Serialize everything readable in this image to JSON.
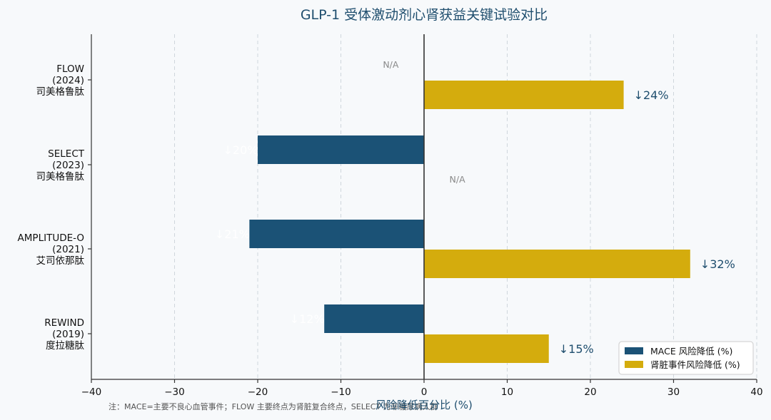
{
  "chart_data": {
    "type": "bar",
    "orientation": "horizontal",
    "title": "GLP-1 受体激动剂心肾获益关键试验对比",
    "xlabel": "风险降低百分比 (%)",
    "ylabel": "",
    "xlim": [
      -40,
      40
    ],
    "xticks": [
      -40,
      -30,
      -20,
      -10,
      0,
      10,
      20,
      30,
      40
    ],
    "xtick_labels": [
      "−40",
      "−30",
      "−20",
      "−10",
      "0",
      "10",
      "20",
      "30",
      "40"
    ],
    "grid": "vertical dashed",
    "legend_position": "bottom-right",
    "categories": [
      {
        "lines": [
          "FLOW",
          "(2024)",
          "司美格鲁肽"
        ]
      },
      {
        "lines": [
          "SELECT",
          "(2023)",
          "司美格鲁肽"
        ]
      },
      {
        "lines": [
          "AMPLITUDE-O",
          "(2021)",
          "艾司依那肽"
        ]
      },
      {
        "lines": [
          "REWIND",
          "(2019)",
          "度拉糖肽"
        ]
      }
    ],
    "series": [
      {
        "name": "MACE 风险降低 (%)",
        "color": "#1b5276",
        "values": [
          null,
          -20,
          -21,
          -12
        ],
        "labels": [
          "N/A",
          "↓20%",
          "↓21%",
          "↓12%"
        ]
      },
      {
        "name": "肾脏事件风险降低 (%)",
        "color": "#d4ac0d",
        "values": [
          24,
          null,
          32,
          15
        ],
        "labels": [
          "↓24%",
          "N/A",
          "↓32%",
          "↓15%"
        ]
      }
    ],
    "footnote": "注：MACE=主要不良心血管事件；FLOW 主要终点为肾脏复合终点，SELECT 为非糖尿病人群"
  }
}
